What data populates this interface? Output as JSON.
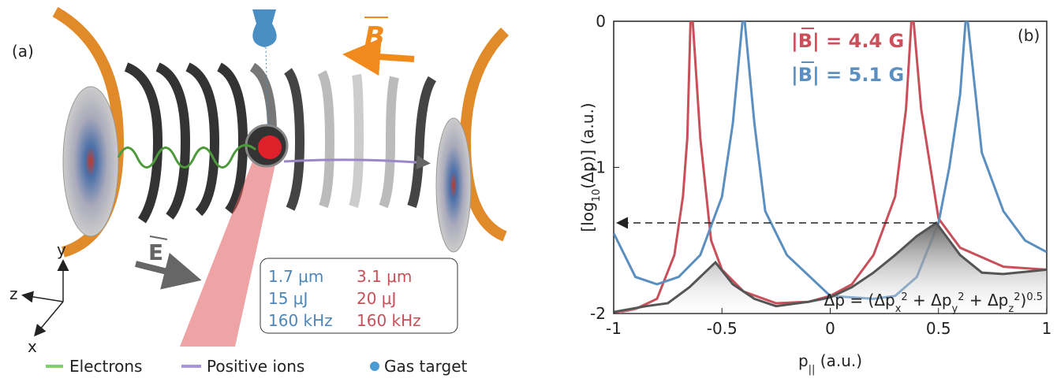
{
  "panel_a": {
    "label": "(a)",
    "field_b": "B",
    "field_e": "E",
    "axes": {
      "y": "y",
      "z": "z",
      "x": "x"
    },
    "laser_table": {
      "rows": [
        [
          "1.7 μm",
          "3.1 μm"
        ],
        [
          "15 μJ",
          "20 μJ"
        ],
        [
          "160 kHz",
          "160 kHz"
        ]
      ]
    },
    "legend": [
      "Electrons",
      "Positive ions",
      "Gas target"
    ]
  },
  "chart_data": {
    "type": "line",
    "panel_label": "(b)",
    "x_label_parts": [
      "p",
      "||",
      " (a.u.)"
    ],
    "y_label_parts": [
      "[log",
      "10",
      "(Δp)] (a.u.)"
    ],
    "annotation_parts": [
      "Δp = (Δp",
      "x",
      "2",
      " + Δp",
      "y",
      "2",
      " + Δp",
      "z",
      "2",
      ")",
      "0.5"
    ],
    "xlim": [
      -1,
      1
    ],
    "ylim": [
      -2,
      0
    ],
    "xticks": [
      -1,
      -0.5,
      0,
      0.5,
      1
    ],
    "yticks": [
      -2,
      -1,
      0
    ],
    "reference_arrow": {
      "y": -1.38,
      "x_start": 0.49,
      "x_end": -1
    },
    "series": [
      {
        "name": "|B| = 4.4 G",
        "color": "#c9505a",
        "x": [
          -1,
          -0.9,
          -0.8,
          -0.72,
          -0.68,
          -0.66,
          -0.645,
          -0.635,
          -0.6,
          -0.55,
          -0.5,
          -0.4,
          -0.25,
          -0.1,
          0,
          0.1,
          0.2,
          0.3,
          0.35,
          0.375,
          0.385,
          0.42,
          0.5,
          0.6,
          0.8,
          1
        ],
        "values": [
          -2.0,
          -1.97,
          -1.9,
          -1.6,
          -1.2,
          -0.8,
          0,
          0,
          -0.8,
          -1.5,
          -1.7,
          -1.85,
          -1.93,
          -1.92,
          -1.88,
          -1.8,
          -1.6,
          -1.2,
          -0.6,
          0,
          0,
          -0.6,
          -1.35,
          -1.55,
          -1.68,
          -1.7
        ]
      },
      {
        "name": "|B| = 5.1 G",
        "color": "#5b8fc0",
        "x": [
          -1,
          -0.9,
          -0.8,
          -0.7,
          -0.6,
          -0.5,
          -0.45,
          -0.405,
          -0.395,
          -0.35,
          -0.3,
          -0.2,
          0,
          0.2,
          0.3,
          0.4,
          0.5,
          0.55,
          0.6,
          0.625,
          0.635,
          0.7,
          0.8,
          0.9,
          1
        ],
        "values": [
          -1.45,
          -1.75,
          -1.8,
          -1.75,
          -1.6,
          -1.2,
          -0.7,
          0,
          0,
          -0.7,
          -1.3,
          -1.6,
          -1.88,
          -1.9,
          -1.88,
          -1.75,
          -1.38,
          -1.0,
          -0.5,
          0,
          0,
          -0.9,
          -1.3,
          -1.5,
          -1.58
        ]
      },
      {
        "color": "#555555",
        "x": [
          -1,
          -0.85,
          -0.75,
          -0.65,
          -0.53,
          -0.45,
          -0.35,
          -0.25,
          -0.1,
          0,
          0.1,
          0.2,
          0.3,
          0.4,
          0.49,
          0.6,
          0.7,
          0.8,
          1
        ],
        "values": [
          -1.99,
          -1.95,
          -1.93,
          -1.82,
          -1.65,
          -1.8,
          -1.9,
          -1.95,
          -1.92,
          -1.89,
          -1.82,
          -1.72,
          -1.6,
          -1.47,
          -1.38,
          -1.6,
          -1.72,
          -1.73,
          -1.7
        ]
      }
    ]
  }
}
